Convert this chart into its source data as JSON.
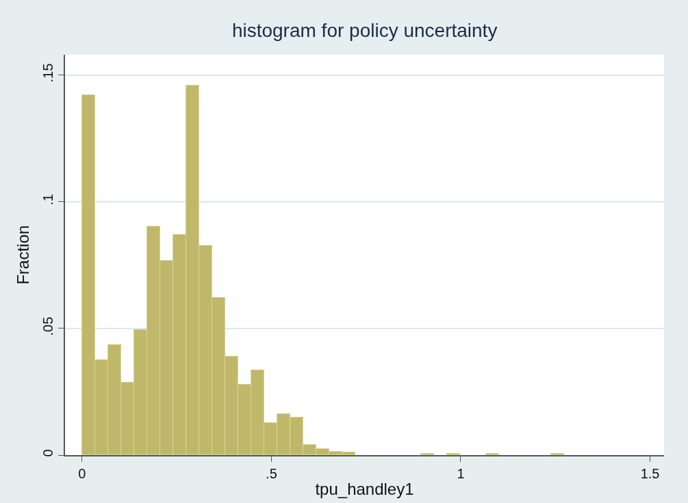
{
  "chart_data": {
    "type": "histogram",
    "title": "histogram for policy uncertainty",
    "xlabel": "tpu_handley1",
    "ylabel": "Fraction",
    "bins": [
      0,
      0.0344,
      0.0688,
      0.1032,
      0.1376,
      0.172,
      0.2064,
      0.2408,
      0.2752,
      0.3096,
      0.344,
      0.3784,
      0.4128,
      0.4472,
      0.4816,
      0.516,
      0.5504,
      0.5848,
      0.6192,
      0.6536,
      0.688,
      0.7224,
      0.7568,
      0.7912,
      0.8256,
      0.86,
      0.8944,
      0.9288,
      0.9632,
      0.9976,
      1.032,
      1.0664,
      1.1008,
      1.1352,
      1.1696,
      1.204,
      1.2384,
      1.2728
    ],
    "values": [
      0.142,
      0.0375,
      0.0436,
      0.0285,
      0.0495,
      0.0903,
      0.0766,
      0.087,
      0.1459,
      0.0826,
      0.0621,
      0.0389,
      0.0279,
      0.0335,
      0.0128,
      0.0161,
      0.0148,
      0.004,
      0.0023,
      0.0014,
      0.001,
      0,
      0,
      0,
      0,
      0,
      0.0005,
      0,
      0.0005,
      0,
      0,
      0.0005,
      0,
      0,
      0,
      0,
      0.0005
    ],
    "color": "#bfb86a",
    "xlim": [
      -0.045,
      1.537
    ],
    "xticks": [
      0,
      {
        "value": 0.5,
        "label": ".5"
      },
      1,
      1.5
    ],
    "ylim": [
      0,
      0.158
    ],
    "yticks": [
      0,
      {
        "value": 0.05,
        "label": ".05"
      },
      {
        "value": 0.1,
        "label": ".1"
      },
      {
        "value": 0.15,
        "label": ".15"
      }
    ],
    "grid": "y",
    "legend": false
  }
}
